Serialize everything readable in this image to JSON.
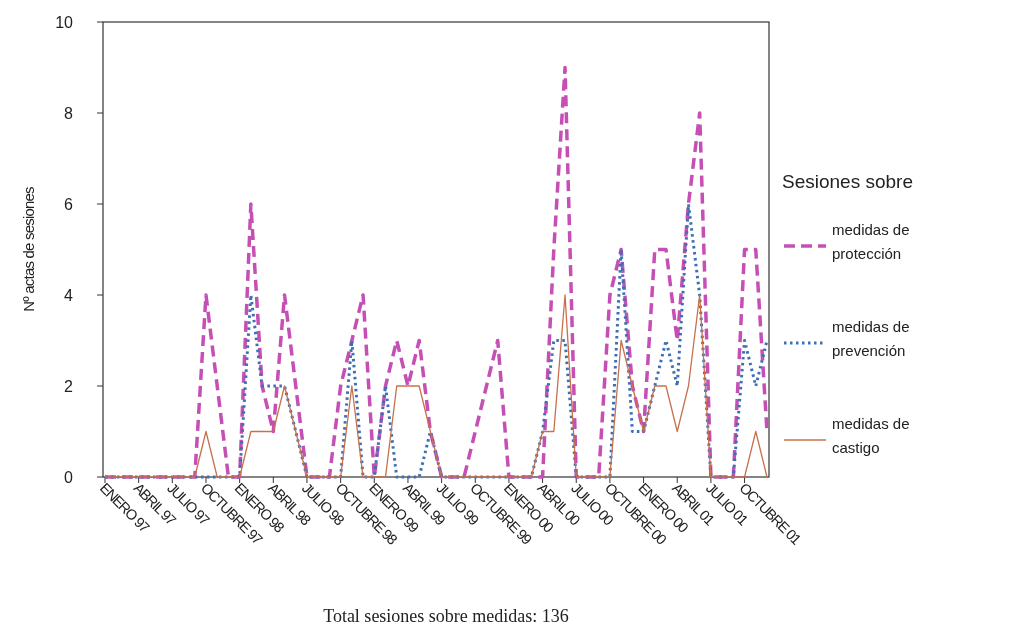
{
  "chart_data": {
    "type": "line",
    "categories": [
      "ENERO 97",
      null,
      null,
      "ABRIL 97",
      null,
      null,
      "JULIO 97",
      null,
      null,
      "OCTUBRE 97",
      null,
      null,
      "ENERO 98",
      null,
      null,
      "ABRIL 98",
      null,
      null,
      "JULIO 98",
      null,
      null,
      "OCTUBRE 98",
      null,
      null,
      "ENERO 99",
      null,
      null,
      "ABRIL 99",
      null,
      null,
      "JULIO 99",
      null,
      null,
      "OCTUBRE 99",
      null,
      null,
      "ENERO 00",
      null,
      null,
      "ABRIL 00",
      null,
      null,
      "JULIO 00",
      null,
      null,
      "OCTUBRE 00",
      null,
      null,
      "ENERO 00",
      null,
      null,
      "ABRIL 01",
      null,
      null,
      "JULIO 01",
      null,
      null,
      "OCTUBRE 01",
      null,
      null
    ],
    "series": [
      {
        "name": "medidas de protección",
        "color": "#c64fb6",
        "line_style": "dashed",
        "values": [
          0,
          0,
          0,
          0,
          0,
          0,
          0,
          0,
          0,
          4,
          2,
          0,
          0,
          6,
          2,
          1,
          4,
          2,
          0,
          0,
          0,
          2,
          3,
          4,
          0,
          2,
          3,
          2,
          3,
          1,
          0,
          0,
          0,
          1,
          2,
          3,
          0,
          0,
          0,
          0,
          5,
          9,
          0,
          0,
          0,
          4,
          5,
          2,
          1,
          5,
          5,
          3,
          6,
          8,
          0,
          0,
          0,
          5,
          5,
          1
        ]
      },
      {
        "name": "medidas de prevención",
        "color": "#3c6fb4",
        "line_style": "dotted",
        "values": [
          0,
          0,
          0,
          0,
          0,
          0,
          0,
          0,
          0,
          0,
          0,
          0,
          0,
          4,
          2,
          2,
          2,
          1,
          0,
          0,
          0,
          0,
          3,
          0,
          0,
          2,
          0,
          0,
          0,
          1,
          0,
          0,
          0,
          0,
          0,
          0,
          0,
          0,
          0,
          1,
          3,
          3,
          0,
          0,
          0,
          0,
          5,
          1,
          1,
          2,
          3,
          2,
          6,
          4,
          0,
          0,
          0,
          3,
          2,
          3
        ]
      },
      {
        "name": "medidas de castigo",
        "color": "#c8704c",
        "line_style": "solid",
        "values": [
          0,
          0,
          0,
          0,
          0,
          0,
          0,
          0,
          0,
          1,
          0,
          0,
          0,
          1,
          1,
          1,
          2,
          1,
          0,
          0,
          0,
          0,
          2,
          0,
          0,
          0,
          2,
          2,
          2,
          1,
          0,
          0,
          0,
          0,
          0,
          0,
          0,
          0,
          0,
          1,
          1,
          4,
          0,
          0,
          0,
          0,
          3,
          2,
          1,
          2,
          2,
          1,
          2,
          4,
          0,
          0,
          0,
          0,
          1,
          0
        ]
      }
    ],
    "ylabel": "Nº actas de sesiones",
    "ylim": [
      0,
      10
    ],
    "yticks": [
      0,
      2,
      4,
      6,
      8,
      10
    ],
    "legend": "right",
    "legend_title": "Sesiones sobre",
    "grid": false,
    "annotations": [
      "Total sesiones sobre medidas: 136"
    ]
  }
}
